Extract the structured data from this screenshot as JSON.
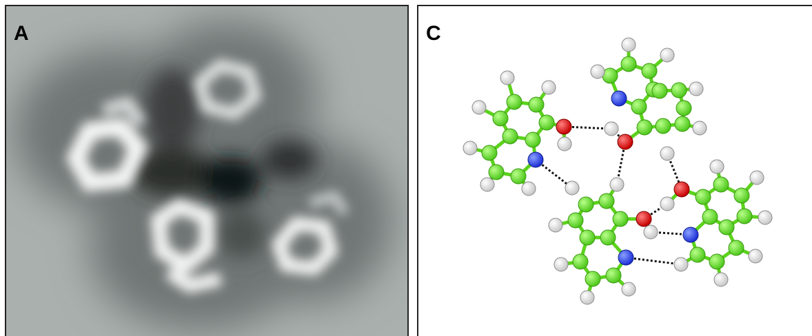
{
  "panels": [
    {
      "label": "A"
    },
    {
      "label": "C"
    }
  ]
}
